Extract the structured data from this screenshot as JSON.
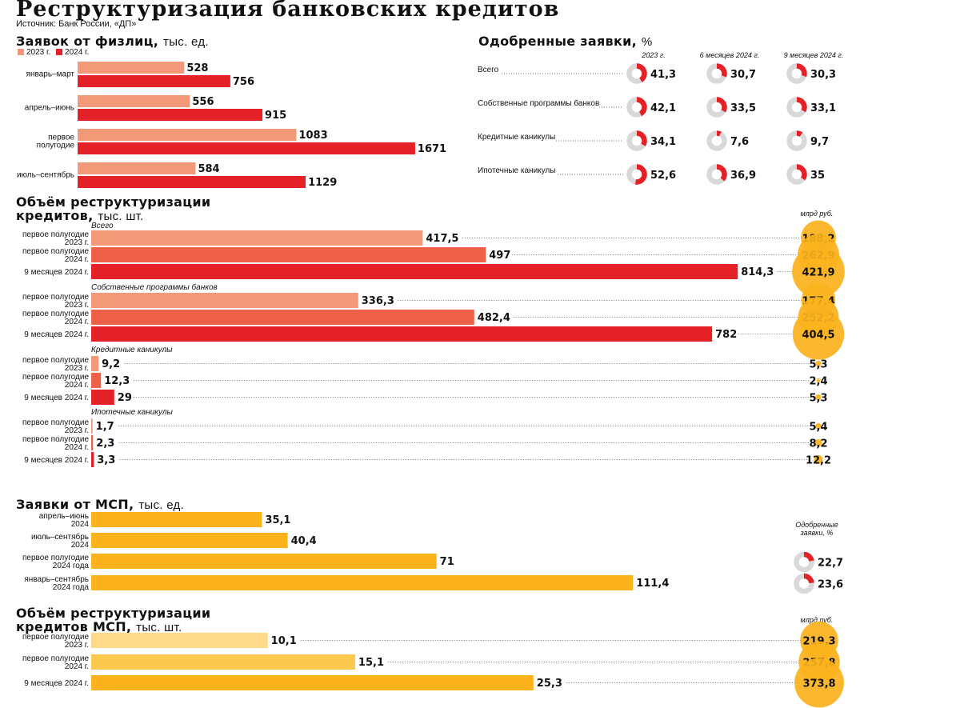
{
  "header": {
    "title": "Реструктуризация  банковских кредитов",
    "source": "Источник: Банк России, «ДП»"
  },
  "colors": {
    "red": "#e32127",
    "salmon": "#f39878",
    "orange_red": "#ee6048",
    "yellow": "#fbb21d",
    "pale_yellow": "#fdd98a",
    "mid_yellow": "#fcc84e",
    "gray": "#d9d9d9",
    "bubble": "#fbb21d"
  },
  "labels": {
    "bn_rub": "млрд руб."
  },
  "chart_data": [
    {
      "id": "individual_applications",
      "type": "bar",
      "title": "Заявок от физлиц,",
      "unit": "тыс. ед.",
      "legend": [
        "2023 г.",
        "2024 г."
      ],
      "categories": [
        "январь–март",
        "апрель–июнь",
        "первое полугодие",
        "июль–сентябрь"
      ],
      "series": [
        {
          "name": "2023 г.",
          "values": [
            528,
            556,
            1083,
            584
          ],
          "labels": [
            "528",
            "556",
            "1083",
            "584"
          ]
        },
        {
          "name": "2024 г.",
          "values": [
            756,
            915,
            1671,
            1129
          ],
          "labels": [
            "756",
            "915",
            "1671",
            "1129"
          ]
        }
      ]
    },
    {
      "id": "approved_share",
      "type": "pie",
      "title": "Одобренные заявки,",
      "unit": "%",
      "columns": [
        "2023 г.",
        "6 месяцев 2024 г.",
        "9 месяцев 2024 г."
      ],
      "rows": [
        {
          "label": "Всего",
          "values": [
            41.3,
            30.7,
            30.3
          ],
          "labels": [
            "41,3",
            "30,7",
            "30,3"
          ]
        },
        {
          "label": "Собственные программы банков",
          "values": [
            42.1,
            33.5,
            33.1
          ],
          "labels": [
            "42,1",
            "33,5",
            "33,1"
          ]
        },
        {
          "label": "Кредитные каникулы",
          "values": [
            34.1,
            7.6,
            9.7
          ],
          "labels": [
            "34,1",
            "7,6",
            "9,7"
          ]
        },
        {
          "label": "Ипотечные каникулы",
          "values": [
            52.6,
            36.9,
            35
          ],
          "labels": [
            "52,6",
            "36,9",
            "35"
          ]
        }
      ]
    },
    {
      "id": "restructuring_volume",
      "type": "bar",
      "title_lines": [
        "Объём реструктуризации",
        "кредитов,"
      ],
      "unit": "тыс. шт.",
      "bubble_unit": "млрд руб.",
      "groups": [
        {
          "name": "Всего",
          "rows": [
            {
              "category": [
                "первое полугодие",
                "2023 г."
              ],
              "value": 417.5,
              "label": "417,5",
              "amount": 188.2,
              "amount_label": "188,2"
            },
            {
              "category": [
                "первое полугодие",
                "2024 г."
              ],
              "value": 497,
              "label": "497",
              "amount": 262.9,
              "amount_label": "262,9"
            },
            {
              "category": [
                "9 месяцев 2024 г."
              ],
              "value": 814.3,
              "label": "814,3",
              "amount": 421.9,
              "amount_label": "421,9"
            }
          ]
        },
        {
          "name": "Собственные программы банков",
          "rows": [
            {
              "category": [
                "первое полугодие",
                "2023 г."
              ],
              "value": 336.3,
              "label": "336,3",
              "amount": 177.4,
              "amount_label": "177,4"
            },
            {
              "category": [
                "первое полугодие",
                "2024 г."
              ],
              "value": 482.4,
              "label": "482,4",
              "amount": 252.2,
              "amount_label": "252,2"
            },
            {
              "category": [
                "9 месяцев 2024 г."
              ],
              "value": 782,
              "label": "782",
              "amount": 404.5,
              "amount_label": "404,5"
            }
          ]
        },
        {
          "name": "Кредитные каникулы",
          "rows": [
            {
              "category": [
                "первое полугодие",
                "2023 г."
              ],
              "value": 9.2,
              "label": "9,2",
              "amount": 5.3,
              "amount_label": "5,3"
            },
            {
              "category": [
                "первое полугодие",
                "2024 г."
              ],
              "value": 12.3,
              "label": "12,3",
              "amount": 2.4,
              "amount_label": "2,4"
            },
            {
              "category": [
                "9 месяцев 2024 г."
              ],
              "value": 29,
              "label": "29",
              "amount": 5.3,
              "amount_label": "5,3"
            }
          ]
        },
        {
          "name": "Ипотечные каникулы",
          "rows": [
            {
              "category": [
                "первое полугодие",
                "2023 г."
              ],
              "value": 1.7,
              "label": "1,7",
              "amount": 5.4,
              "amount_label": "5,4"
            },
            {
              "category": [
                "первое полугодие",
                "2024 г."
              ],
              "value": 2.3,
              "label": "2,3",
              "amount": 8.2,
              "amount_label": "8,2"
            },
            {
              "category": [
                "9 месяцев 2024 г."
              ],
              "value": 3.3,
              "label": "3,3",
              "amount": 12.2,
              "amount_label": "12,2"
            }
          ]
        }
      ]
    },
    {
      "id": "sme_applications",
      "type": "bar",
      "title": "Заявки от МСП,",
      "unit": "тыс. ед.",
      "approved_title": [
        "Одобренные",
        "заявки, %"
      ],
      "rows": [
        {
          "category": [
            "апрель–июнь",
            "2024"
          ],
          "value": 35.1,
          "label": "35,1"
        },
        {
          "category": [
            "июль–сентябрь",
            "2024"
          ],
          "value": 40.4,
          "label": "40,4"
        },
        {
          "category": [
            "первое полугодие",
            "2024 года"
          ],
          "value": 71,
          "label": "71",
          "approved": 22.7,
          "approved_label": "22,7"
        },
        {
          "category": [
            "январь–сентябрь",
            "2024 года"
          ],
          "value": 111.4,
          "label": "111,4",
          "approved": 23.6,
          "approved_label": "23,6"
        }
      ]
    },
    {
      "id": "sme_restructuring",
      "type": "bar",
      "title_lines": [
        "Объём реструктуризации",
        "кредитов МСП,"
      ],
      "unit": "тыс. шт.",
      "bubble_unit": "млрд руб.",
      "rows": [
        {
          "category": [
            "первое полугодие",
            "2023 г."
          ],
          "value": 10.1,
          "label": "10,1",
          "amount": 219.3,
          "amount_label": "219,3"
        },
        {
          "category": [
            "первое полугодие",
            "2024 г."
          ],
          "value": 15.1,
          "label": "15,1",
          "amount": 257.8,
          "amount_label": "257,8"
        },
        {
          "category": [
            "9 месяцев 2024 г."
          ],
          "value": 25.3,
          "label": "25,3",
          "amount": 373.8,
          "amount_label": "373,8"
        }
      ]
    }
  ]
}
